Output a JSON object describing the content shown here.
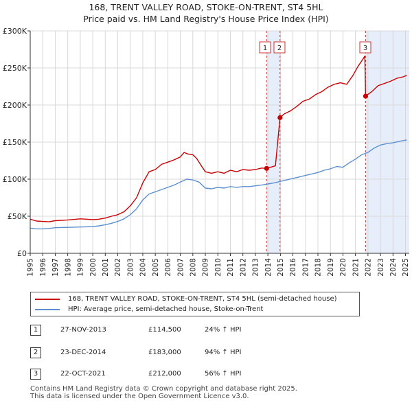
{
  "title": {
    "line1": "168, TRENT VALLEY ROAD, STOKE-ON-TRENT, ST4 5HL",
    "line2": "Price paid vs. HM Land Registry's House Price Index (HPI)"
  },
  "colors": {
    "property": "#cc0000",
    "hpi": "#5b8fd0",
    "shade": "#e7eefb",
    "marker_line": "#dd3333",
    "grid": "#d8d8d8"
  },
  "chart_data": {
    "type": "line",
    "title": "168, TRENT VALLEY ROAD, STOKE-ON-TRENT, ST4 5HL",
    "subtitle": "Price paid vs. HM Land Registry's House Price Index (HPI)",
    "xlabel": "",
    "ylabel": "",
    "xlim": [
      1995,
      2025.3
    ],
    "ylim": [
      0,
      300000
    ],
    "grid": true,
    "y_ticks": [
      0,
      50000,
      100000,
      150000,
      200000,
      250000,
      300000
    ],
    "y_tick_labels": [
      "£0",
      "£50K",
      "£100K",
      "£150K",
      "£200K",
      "£250K",
      "£300K"
    ],
    "x_ticks": [
      "1995",
      "1996",
      "1997",
      "1998",
      "1999",
      "2000",
      "2001",
      "2002",
      "2003",
      "2004",
      "2005",
      "2006",
      "2007",
      "2008",
      "2009",
      "2010",
      "2011",
      "2012",
      "2013",
      "2014",
      "2015",
      "2016",
      "2017",
      "2018",
      "2019",
      "2020",
      "2021",
      "2022",
      "2023",
      "2024",
      "2025"
    ],
    "series": [
      {
        "name": "168, TRENT VALLEY ROAD, STOKE-ON-TRENT, ST4 5HL (semi-detached house)",
        "color": "#cc0000",
        "x": [
          1995.0,
          1995.5,
          1996.0,
          1996.5,
          1997.0,
          1998.0,
          1999.0,
          2000.0,
          2000.5,
          2001.0,
          2001.5,
          2002.0,
          2002.5,
          2003.0,
          2003.5,
          2004.0,
          2004.5,
          2005.0,
          2005.5,
          2006.0,
          2006.5,
          2007.0,
          2007.3,
          2007.6,
          2008.0,
          2008.3,
          2008.6,
          2009.0,
          2009.5,
          2010.0,
          2010.5,
          2011.0,
          2011.5,
          2012.0,
          2012.5,
          2013.0,
          2013.5,
          2013.9,
          2014.2,
          2014.6,
          2014.97,
          2015.3,
          2015.8,
          2016.3,
          2016.8,
          2017.3,
          2017.8,
          2018.3,
          2018.8,
          2019.3,
          2019.8,
          2020.3,
          2020.8,
          2021.2,
          2021.6,
          2021.75,
          2021.81,
          2022.3,
          2022.8,
          2023.3,
          2023.8,
          2024.3,
          2024.8,
          2025.1
        ],
        "y": [
          46000,
          43500,
          43000,
          42500,
          44000,
          45000,
          46500,
          45500,
          46000,
          47500,
          50000,
          52000,
          56000,
          64000,
          75000,
          95000,
          110000,
          113000,
          120000,
          123000,
          126000,
          130000,
          136000,
          134000,
          133000,
          128000,
          120000,
          110000,
          108000,
          110000,
          108000,
          112000,
          110000,
          113000,
          112000,
          113000,
          115000,
          114500,
          116000,
          118000,
          183000,
          188000,
          192000,
          198000,
          205000,
          208000,
          214000,
          218000,
          224000,
          228000,
          230000,
          228000,
          240000,
          252000,
          262000,
          266000,
          212000,
          218000,
          226000,
          229000,
          232000,
          236000,
          238000,
          240000
        ]
      },
      {
        "name": "HPI: Average price, semi-detached house, Stoke-on-Trent",
        "color": "#5b8fd0",
        "x": [
          1995.0,
          1995.5,
          1996.0,
          1996.5,
          1997.0,
          1998.0,
          1999.0,
          2000.0,
          2000.5,
          2001.0,
          2001.5,
          2002.0,
          2002.5,
          2003.0,
          2003.5,
          2004.0,
          2004.5,
          2005.0,
          2005.5,
          2006.0,
          2006.5,
          2007.0,
          2007.5,
          2008.0,
          2008.5,
          2009.0,
          2009.5,
          2010.0,
          2010.5,
          2011.0,
          2011.5,
          2012.0,
          2012.5,
          2013.0,
          2013.5,
          2014.0,
          2014.5,
          2015.0,
          2015.5,
          2016.0,
          2016.5,
          2017.0,
          2017.5,
          2018.0,
          2018.5,
          2019.0,
          2019.5,
          2020.0,
          2020.5,
          2021.0,
          2021.5,
          2022.0,
          2022.5,
          2023.0,
          2023.5,
          2024.0,
          2024.5,
          2025.1
        ],
        "y": [
          34000,
          33000,
          33000,
          33500,
          34500,
          35000,
          35500,
          36000,
          37000,
          38500,
          40500,
          43000,
          46500,
          52000,
          60000,
          72000,
          80000,
          83000,
          86000,
          89000,
          92000,
          96000,
          100000,
          99000,
          96000,
          88000,
          87000,
          89000,
          88000,
          90000,
          89000,
          90000,
          90000,
          91000,
          92000,
          93500,
          95000,
          97000,
          99000,
          101000,
          103000,
          105000,
          107000,
          109000,
          112000,
          114000,
          117000,
          116000,
          122000,
          127000,
          133000,
          136000,
          142000,
          146000,
          148000,
          149000,
          151000,
          153000
        ]
      }
    ],
    "sales": [
      {
        "label": "1",
        "x": 2013.9,
        "y": 114500
      },
      {
        "label": "2",
        "x": 2014.97,
        "y": 183000
      },
      {
        "label": "3",
        "x": 2021.81,
        "y": 212000
      }
    ],
    "shaded_periods": [
      [
        2013.9,
        2014.97
      ],
      [
        2021.81,
        2025.3
      ]
    ]
  },
  "legend": {
    "property_label": "168, TRENT VALLEY ROAD, STOKE-ON-TRENT, ST4 5HL (semi-detached house)",
    "hpi_label": "HPI: Average price, semi-detached house, Stoke-on-Trent"
  },
  "sales_table": [
    {
      "num": "1",
      "date": "27-NOV-2013",
      "price": "£114,500",
      "hpi": "24% ↑ HPI"
    },
    {
      "num": "2",
      "date": "23-DEC-2014",
      "price": "£183,000",
      "hpi": "94% ↑ HPI"
    },
    {
      "num": "3",
      "date": "22-OCT-2021",
      "price": "£212,000",
      "hpi": "56% ↑ HPI"
    }
  ],
  "footer": {
    "line1": "Contains HM Land Registry data © Crown copyright and database right 2025.",
    "line2": "This data is licensed under the Open Government Licence v3.0."
  }
}
